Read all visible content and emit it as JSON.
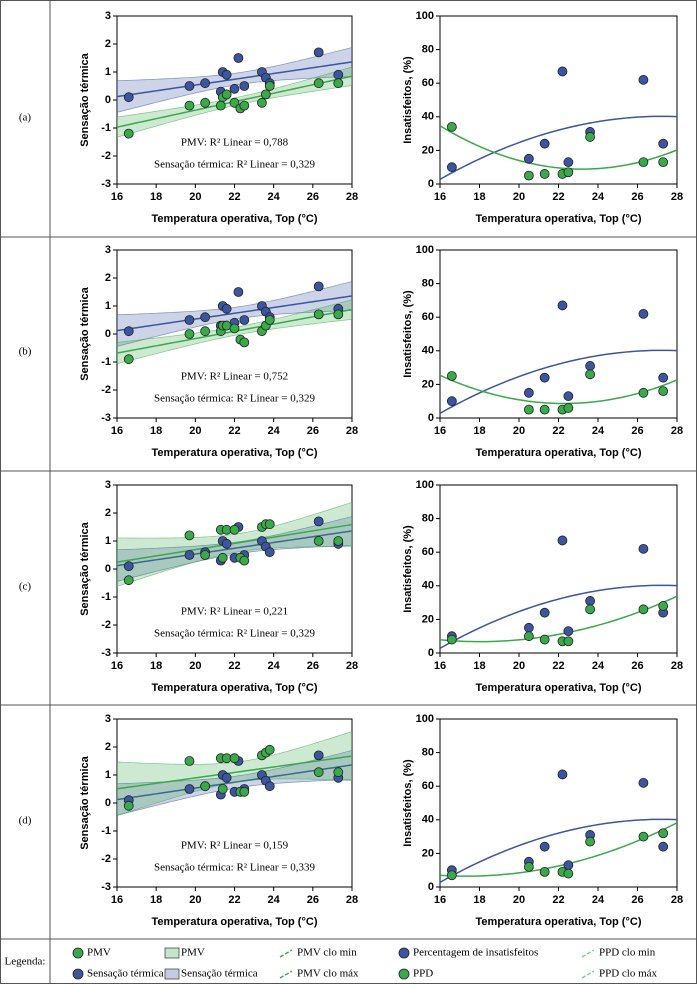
{
  "row_labels": [
    "(a)",
    "(b)",
    "(c)",
    "(d)"
  ],
  "legend": {
    "title": "Legenda:",
    "items": [
      {
        "label": "PMV",
        "marker": "circle",
        "color": "#3aa94a"
      },
      {
        "label": "Sensação térmica",
        "marker": "circle",
        "color": "#3b55a0"
      },
      {
        "label": "PMV",
        "marker": "box",
        "color": "#3aa94a"
      },
      {
        "label": "Sensação térmica",
        "marker": "box",
        "color": "#3b55a0"
      },
      {
        "label": "PMV clo min",
        "marker": "dash",
        "color": "#3aa94a"
      },
      {
        "label": "PMV clo máx",
        "marker": "dash",
        "color": "#3aa94a"
      },
      {
        "label": "Percentagem de insatisfeitos",
        "marker": "circle",
        "color": "#3b55a0"
      },
      {
        "label": "PPD",
        "marker": "circle",
        "color": "#3aa94a"
      },
      {
        "label": "PPD clo min",
        "marker": "dash",
        "color": "#7fd07f"
      },
      {
        "label": "PPD clo máx",
        "marker": "dash",
        "color": "#7fd07f"
      }
    ]
  },
  "chart_data": [
    {
      "type": "scatter",
      "fit": "linear",
      "xlabel": "Temperatura operativa, Top (°C)",
      "ylabel": "Sensação térmica",
      "xlim": [
        16,
        28
      ],
      "xticks": [
        16,
        18,
        20,
        22,
        24,
        26,
        28
      ],
      "ylim": [
        -3,
        3
      ],
      "yticks": [
        -3,
        -2,
        -1,
        0,
        1,
        2,
        3
      ],
      "annotations": [
        "PMV: R² Linear = 0,788",
        "Sensação térmica: R² Linear = 0,329"
      ],
      "series": [
        {
          "color": "#3b55a0",
          "x": [
            16.6,
            19.7,
            20.5,
            21.3,
            21.4,
            21.6,
            22.0,
            22.2,
            22.5,
            23.4,
            23.6,
            23.8,
            26.3,
            27.3
          ],
          "values": [
            0.1,
            0.5,
            0.6,
            0.3,
            1.0,
            0.9,
            0.4,
            1.5,
            0.5,
            1.0,
            0.8,
            0.6,
            1.7,
            0.9
          ]
        },
        {
          "color": "#3aa94a",
          "x": [
            16.6,
            19.7,
            20.5,
            21.3,
            21.4,
            21.6,
            22.0,
            22.3,
            22.5,
            23.4,
            23.6,
            23.8,
            26.3,
            27.3
          ],
          "values": [
            -1.2,
            -0.2,
            -0.1,
            -0.2,
            0.1,
            0.2,
            -0.1,
            -0.3,
            -0.2,
            -0.1,
            0.2,
            0.5,
            0.6,
            0.6
          ]
        }
      ]
    },
    {
      "type": "scatter",
      "fit": "quadratic",
      "xlabel": "Temperatura operativa, Top  (°C)",
      "ylabel": "Insatisfeitos, (%)",
      "xlim": [
        16,
        28
      ],
      "xticks": [
        16,
        18,
        20,
        22,
        24,
        26,
        28
      ],
      "ylim": [
        0,
        100
      ],
      "yticks": [
        0,
        20,
        40,
        60,
        80,
        100
      ],
      "series": [
        {
          "color": "#3b55a0",
          "x": [
            16.6,
            20.5,
            21.3,
            22.2,
            22.5,
            23.6,
            26.3,
            27.3
          ],
          "values": [
            10,
            15,
            24,
            67,
            13,
            31,
            62,
            24
          ]
        },
        {
          "color": "#3aa94a",
          "x": [
            16.6,
            20.5,
            21.3,
            22.2,
            22.5,
            23.6,
            26.3,
            27.3
          ],
          "values": [
            34,
            5,
            6,
            6,
            7,
            28,
            13,
            13
          ]
        }
      ]
    },
    {
      "type": "scatter",
      "fit": "linear",
      "xlabel": "Temperatura operativa, Top (°C)",
      "ylabel": "Sensação térmica",
      "xlim": [
        16,
        28
      ],
      "xticks": [
        16,
        18,
        20,
        22,
        24,
        26,
        28
      ],
      "ylim": [
        -3,
        3
      ],
      "yticks": [
        -3,
        -2,
        -1,
        0,
        1,
        2,
        3
      ],
      "annotations": [
        "PMV: R² Linear = 0,752",
        "Sensação térmica: R² Linear = 0,329"
      ],
      "series": [
        {
          "color": "#3b55a0",
          "x": [
            16.6,
            19.7,
            20.5,
            21.3,
            21.4,
            21.6,
            22.0,
            22.2,
            22.5,
            23.4,
            23.6,
            23.8,
            26.3,
            27.3
          ],
          "values": [
            0.1,
            0.5,
            0.6,
            0.3,
            1.0,
            0.9,
            0.4,
            1.5,
            0.5,
            1.0,
            0.8,
            0.6,
            1.7,
            0.9
          ]
        },
        {
          "color": "#3aa94a",
          "x": [
            16.6,
            19.7,
            20.5,
            21.3,
            21.4,
            21.6,
            22.0,
            22.3,
            22.5,
            23.4,
            23.6,
            23.8,
            26.3,
            27.3
          ],
          "values": [
            -0.9,
            0,
            0.1,
            0.1,
            0.3,
            0.3,
            0.2,
            -0.2,
            -0.3,
            0.1,
            0.3,
            0.5,
            0.7,
            0.7
          ]
        }
      ]
    },
    {
      "type": "scatter",
      "fit": "quadratic",
      "xlabel": "Temperatura operativa, Top (°C)",
      "ylabel": "Insatisfeitos, (%)",
      "xlim": [
        16,
        28
      ],
      "xticks": [
        16,
        18,
        20,
        22,
        24,
        26,
        28
      ],
      "ylim": [
        0,
        100
      ],
      "yticks": [
        0,
        20,
        40,
        60,
        80,
        100
      ],
      "series": [
        {
          "color": "#3b55a0",
          "x": [
            16.6,
            20.5,
            21.3,
            22.2,
            22.5,
            23.6,
            26.3,
            27.3
          ],
          "values": [
            10,
            15,
            24,
            67,
            13,
            31,
            62,
            24
          ]
        },
        {
          "color": "#3aa94a",
          "x": [
            16.6,
            20.5,
            21.3,
            22.2,
            22.5,
            23.6,
            26.3,
            27.3
          ],
          "values": [
            25,
            5,
            5,
            5,
            6,
            26,
            15,
            16
          ]
        }
      ]
    },
    {
      "type": "scatter",
      "fit": "linear",
      "xlabel": "Temperatura operativa, Top (°C)",
      "ylabel": "Sensação térmica",
      "xlim": [
        16,
        28
      ],
      "xticks": [
        16,
        18,
        20,
        22,
        24,
        26,
        28
      ],
      "ylim": [
        -3,
        3
      ],
      "yticks": [
        -3,
        -2,
        -1,
        0,
        1,
        2,
        3
      ],
      "annotations": [
        "PMV: R² Linear = 0,221",
        "Sensação térmica: R² Linear = 0,329"
      ],
      "series": [
        {
          "color": "#3b55a0",
          "x": [
            16.6,
            19.7,
            20.5,
            21.3,
            21.4,
            21.6,
            22.0,
            22.2,
            22.5,
            23.4,
            23.6,
            23.8,
            26.3,
            27.3
          ],
          "values": [
            0.1,
            0.5,
            0.6,
            0.3,
            1.0,
            0.9,
            0.4,
            1.5,
            0.5,
            1.0,
            0.8,
            0.6,
            1.7,
            0.9
          ]
        },
        {
          "color": "#3aa94a",
          "x": [
            16.6,
            19.7,
            20.5,
            21.3,
            21.4,
            21.6,
            22.0,
            22.3,
            22.5,
            23.4,
            23.6,
            23.8,
            26.3,
            27.3
          ],
          "values": [
            -0.4,
            1.2,
            0.5,
            1.4,
            0.4,
            1.4,
            1.4,
            0.4,
            0.3,
            1.5,
            1.6,
            1.6,
            1.0,
            1.0
          ]
        }
      ]
    },
    {
      "type": "scatter",
      "fit": "quadratic",
      "xlabel": "Temperatura operativa, Top (°C)",
      "ylabel": "Insatisfeitos, (%)",
      "xlim": [
        16,
        28
      ],
      "xticks": [
        16,
        18,
        20,
        22,
        24,
        26,
        28
      ],
      "ylim": [
        0,
        100
      ],
      "yticks": [
        0,
        20,
        40,
        60,
        80,
        100
      ],
      "series": [
        {
          "color": "#3b55a0",
          "x": [
            16.6,
            20.5,
            21.3,
            22.2,
            22.5,
            23.6,
            26.3,
            27.3
          ],
          "values": [
            10,
            15,
            24,
            67,
            13,
            31,
            62,
            24
          ]
        },
        {
          "color": "#3aa94a",
          "x": [
            16.6,
            20.5,
            21.3,
            22.2,
            22.5,
            23.6,
            26.3,
            27.3
          ],
          "values": [
            8,
            10,
            8,
            7,
            7,
            26,
            26,
            28
          ]
        }
      ]
    },
    {
      "type": "scatter",
      "fit": "linear",
      "xlabel": "Temperatura operativa, Top (°C)",
      "ylabel": "Sensação térmica",
      "xlim": [
        16,
        28
      ],
      "xticks": [
        16,
        18,
        20,
        22,
        24,
        26,
        28
      ],
      "ylim": [
        -3,
        3
      ],
      "yticks": [
        -3,
        -2,
        -1,
        0,
        1,
        2,
        3
      ],
      "annotations": [
        "PMV: R² Linear = 0,159",
        "Sensação térmica: R² Linear = 0,339"
      ],
      "series": [
        {
          "color": "#3b55a0",
          "x": [
            16.6,
            19.7,
            20.5,
            21.3,
            21.4,
            21.6,
            22.0,
            22.2,
            22.5,
            23.4,
            23.6,
            23.8,
            26.3,
            27.3
          ],
          "values": [
            0.1,
            0.5,
            0.6,
            0.3,
            1.0,
            0.9,
            0.4,
            1.5,
            0.5,
            1.0,
            0.8,
            0.6,
            1.7,
            0.9
          ]
        },
        {
          "color": "#3aa94a",
          "x": [
            16.6,
            19.7,
            20.5,
            21.3,
            21.4,
            21.6,
            22.0,
            22.3,
            22.5,
            23.4,
            23.6,
            23.8,
            26.3,
            27.3
          ],
          "values": [
            -0.1,
            1.5,
            0.6,
            1.6,
            0.5,
            1.6,
            1.6,
            0.4,
            0.4,
            1.7,
            1.8,
            1.9,
            1.1,
            1.1
          ]
        }
      ]
    },
    {
      "type": "scatter",
      "fit": "quadratic",
      "xlabel": "Temperatura operativa, Top (°C)",
      "ylabel": "Insatisfeitos, (%)",
      "xlim": [
        16,
        28
      ],
      "xticks": [
        16,
        18,
        20,
        22,
        24,
        26,
        28
      ],
      "ylim": [
        0,
        100
      ],
      "yticks": [
        0,
        20,
        40,
        60,
        80,
        100
      ],
      "series": [
        {
          "color": "#3b55a0",
          "x": [
            16.6,
            20.5,
            21.3,
            22.2,
            22.5,
            23.6,
            26.3,
            27.3
          ],
          "values": [
            10,
            15,
            24,
            67,
            13,
            31,
            62,
            24
          ]
        },
        {
          "color": "#3aa94a",
          "x": [
            16.6,
            20.5,
            21.3,
            22.2,
            22.5,
            23.6,
            26.3,
            27.3
          ],
          "values": [
            7,
            12,
            9,
            9,
            8,
            27,
            30,
            32
          ]
        }
      ]
    }
  ]
}
